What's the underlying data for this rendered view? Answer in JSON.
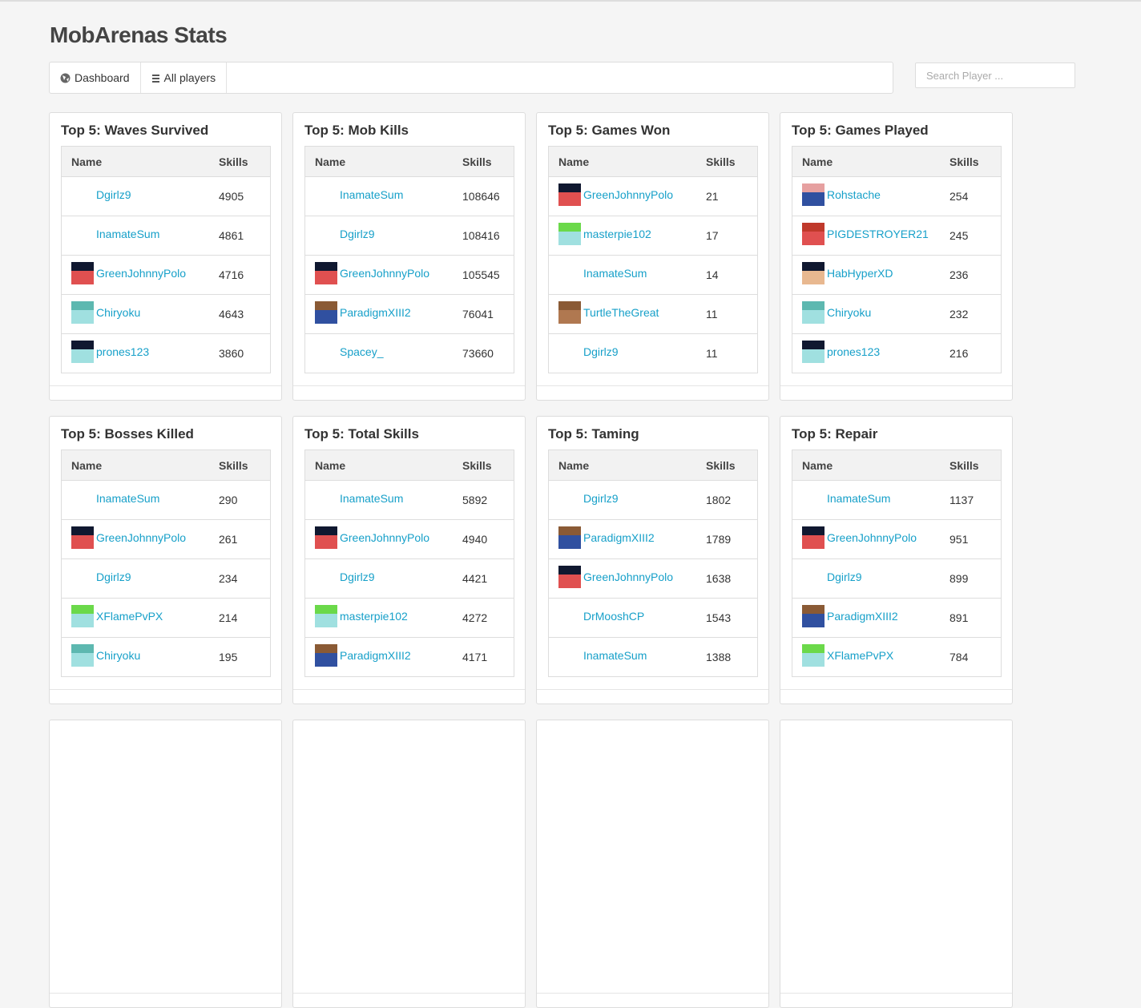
{
  "header": {
    "title": "MobArenas Stats"
  },
  "nav": {
    "items": [
      "Dashboard",
      "All players"
    ],
    "search_placeholder": "Search Player ..."
  },
  "panels": [
    {
      "title": "Top 5: Waves Survived",
      "columns": [
        "Name",
        "Skills"
      ],
      "rows": [
        [
          "Dgirlz9",
          4905
        ],
        [
          "InamateSum",
          4861
        ],
        [
          "GreenJohnnyPolo",
          4716
        ],
        [
          "Chiryoku",
          4643
        ],
        [
          "prones123",
          3860
        ]
      ]
    },
    {
      "title": "Top 5: Mob Kills",
      "columns": [
        "Name",
        "Skills"
      ],
      "rows": [
        [
          "InamateSum",
          108646
        ],
        [
          "Dgirlz9",
          108416
        ],
        [
          "GreenJohnnyPolo",
          105545
        ],
        [
          "ParadigmXIII2",
          76041
        ],
        [
          "Spacey_",
          73660
        ]
      ]
    },
    {
      "title": "Top 5: Games Won",
      "columns": [
        "Name",
        "Skills"
      ],
      "rows": [
        [
          "GreenJohnnyPolo",
          21
        ],
        [
          "masterpie102",
          17
        ],
        [
          "InamateSum",
          14
        ],
        [
          "TurtleTheGreat",
          11
        ],
        [
          "Dgirlz9",
          11
        ]
      ]
    },
    {
      "title": "Top 5: Games Played",
      "columns": [
        "Name",
        "Skills"
      ],
      "rows": [
        [
          "Rohstache",
          254
        ],
        [
          "PIGDESTROYER21",
          245
        ],
        [
          "HabHyperXD",
          236
        ],
        [
          "Chiryoku",
          232
        ],
        [
          "prones123",
          216
        ]
      ]
    },
    {
      "title": "Top 5: Bosses Killed",
      "columns": [
        "Name",
        "Skills"
      ],
      "rows": [
        [
          "InamateSum",
          290
        ],
        [
          "GreenJohnnyPolo",
          261
        ],
        [
          "Dgirlz9",
          234
        ],
        [
          "XFlamePvPX",
          214
        ],
        [
          "Chiryoku",
          195
        ]
      ]
    },
    {
      "title": "Top 5: Total Skills",
      "columns": [
        "Name",
        "Skills"
      ],
      "rows": [
        [
          "InamateSum",
          5892
        ],
        [
          "GreenJohnnyPolo",
          4940
        ],
        [
          "Dgirlz9",
          4421
        ],
        [
          "masterpie102",
          4272
        ],
        [
          "ParadigmXIII2",
          4171
        ]
      ]
    },
    {
      "title": "Top 5: Taming",
      "columns": [
        "Name",
        "Skills"
      ],
      "rows": [
        [
          "Dgirlz9",
          1802
        ],
        [
          "ParadigmXIII2",
          1789
        ],
        [
          "GreenJohnnyPolo",
          1638
        ],
        [
          "DrMooshCP",
          1543
        ],
        [
          "InamateSum",
          1388
        ]
      ]
    },
    {
      "title": "Top 5: Repair",
      "columns": [
        "Name",
        "Skills"
      ],
      "rows": [
        [
          "InamateSum",
          1137
        ],
        [
          "GreenJohnnyPolo",
          951
        ],
        [
          "Dgirlz9",
          899
        ],
        [
          "ParadigmXIII2",
          891
        ],
        [
          "XFlamePvPX",
          784
        ]
      ]
    }
  ]
}
